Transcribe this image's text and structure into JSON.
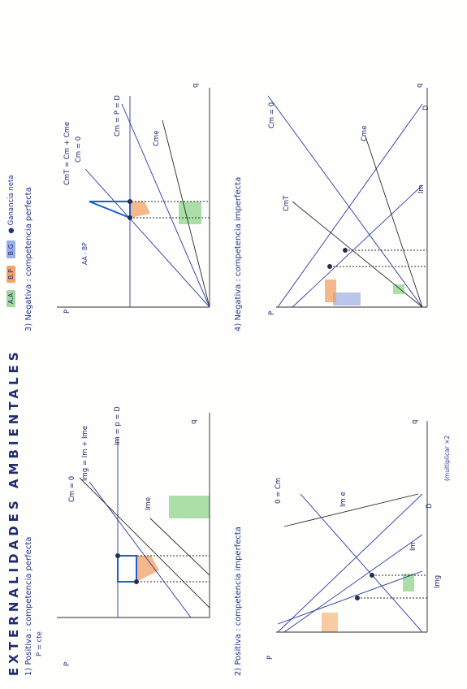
{
  "title": "EXTERNALIDADES AMBIENTALES",
  "legend": {
    "items": [
      {
        "label": "A.A",
        "color": "#9fd89a"
      },
      {
        "label": "B.P",
        "color": "#f4a46a"
      },
      {
        "label": "B.G",
        "color": "#9db0e6"
      }
    ],
    "note": "Ganancia neta"
  },
  "colors": {
    "ink": "#23308a",
    "pencil": "#2a2a2a",
    "green": "#8fd48b",
    "orange": "#f09a5a",
    "blue": "#1f5fd0",
    "lilac": "#a9b6e6"
  },
  "sections": [
    {
      "heading": "1) Positiva : competencia perfecta",
      "sub": "P = cte",
      "labels": [
        "Cm = 0",
        "Img = Im + Ime",
        "Im = p = D",
        "Ime",
        "q",
        "P"
      ]
    },
    {
      "heading": "2) Positiva : competencia imperfecta",
      "labels": [
        "0 = Cm",
        "Im e",
        "D",
        "Im",
        "Img",
        "q",
        "P"
      ],
      "note": "(multiplicar ×2"
    },
    {
      "heading": "3) Negativa : competencia perfecta",
      "labels": [
        "Cm = P = D",
        "CmT = Cm + Cme",
        "Cm = 0",
        "Cme",
        "q",
        "P",
        "AA - BP"
      ]
    },
    {
      "heading": "4) Negativa : competencia imperfecta",
      "labels": [
        "Cm = 0",
        "CmT",
        "Cme",
        "D",
        "Im",
        "q",
        "P"
      ]
    }
  ]
}
